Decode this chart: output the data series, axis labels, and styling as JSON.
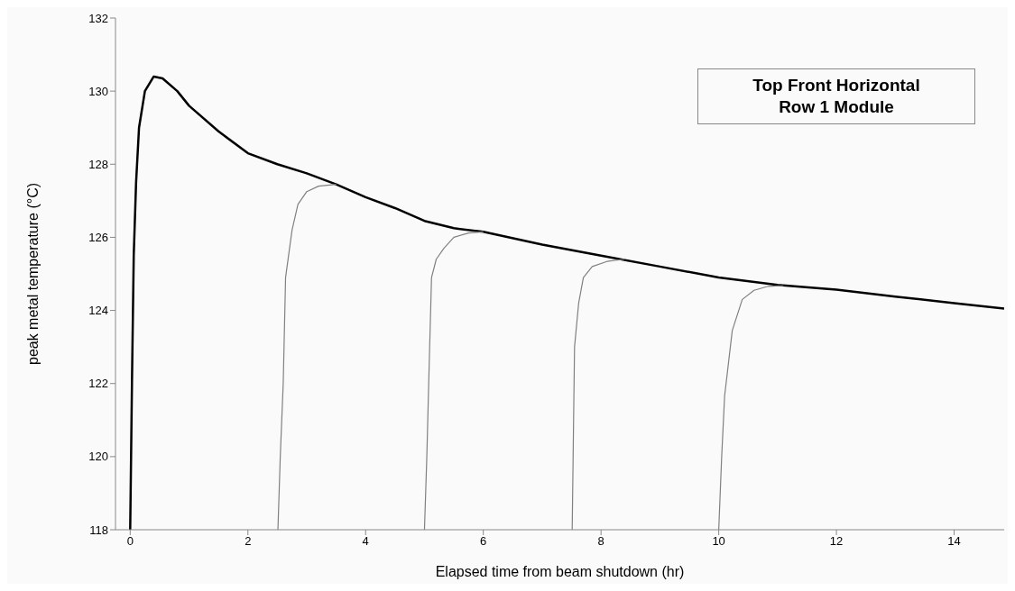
{
  "chart_data": {
    "type": "line",
    "xlabel": "Elapsed time from beam shutdown (hr)",
    "ylabel": "peak metal temperature (°C)",
    "annotations": [
      "Top Front Horizontal\nRow 1 Module"
    ],
    "xlim": [
      -0.25,
      14.85
    ],
    "xticks": [
      0,
      2,
      4,
      6,
      8,
      10,
      12,
      14
    ],
    "ylim": [
      118,
      132
    ],
    "yticks": [
      118,
      120,
      122,
      124,
      126,
      128,
      130,
      132
    ],
    "grid": false,
    "legend": false,
    "marker": "none",
    "line_style": "solid",
    "series": [
      {
        "color": "#000000",
        "x": [
          0,
          0.03,
          0.06,
          0.1,
          0.15,
          0.25,
          0.4,
          0.55,
          0.8,
          1.0,
          1.5,
          2.0,
          2.5,
          3.0,
          3.5,
          4.0,
          4.5,
          5.0,
          5.5,
          6.0,
          7.0,
          8.0,
          9.0,
          10.0,
          11.0,
          12.0,
          13.0,
          14.0,
          14.85
        ],
        "values": [
          118,
          122,
          125.5,
          127.5,
          129.0,
          130.0,
          130.4,
          130.35,
          130.0,
          129.6,
          128.9,
          128.3,
          128.0,
          127.75,
          127.45,
          127.1,
          126.8,
          126.45,
          126.25,
          126.15,
          125.8,
          125.5,
          125.2,
          124.9,
          124.7,
          124.57,
          124.38,
          124.2,
          124.05
        ]
      },
      {
        "color": "#808080",
        "x": [
          2.51,
          2.55,
          2.6,
          2.64,
          2.75,
          2.85,
          3.0,
          3.2,
          3.5
        ],
        "values": [
          118,
          120,
          122,
          124.9,
          126.2,
          126.9,
          127.25,
          127.4,
          127.45
        ]
      },
      {
        "color": "#808080",
        "x": [
          5.0,
          5.04,
          5.08,
          5.12,
          5.2,
          5.33,
          5.5,
          5.75,
          6.0
        ],
        "values": [
          118,
          120,
          122.5,
          124.9,
          125.4,
          125.7,
          126.0,
          126.12,
          126.15
        ]
      },
      {
        "color": "#808080",
        "x": [
          7.51,
          7.53,
          7.55,
          7.62,
          7.7,
          7.85,
          8.1,
          8.4
        ],
        "values": [
          118,
          120.5,
          123.0,
          124.2,
          124.9,
          125.2,
          125.34,
          125.4
        ]
      },
      {
        "color": "#808080",
        "x": [
          10.0,
          10.05,
          10.1,
          10.23,
          10.4,
          10.6,
          10.84,
          11.1
        ],
        "values": [
          118,
          120,
          121.66,
          123.45,
          124.3,
          124.55,
          124.66,
          124.68
        ]
      }
    ]
  }
}
